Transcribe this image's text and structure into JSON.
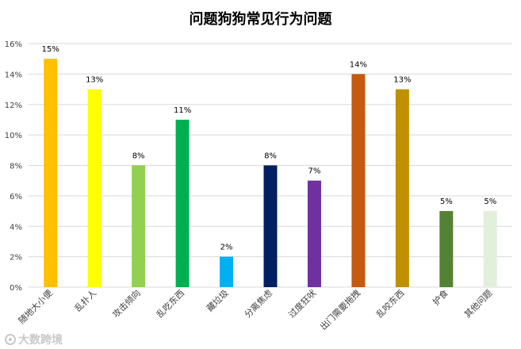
{
  "chart_data": {
    "type": "bar",
    "title": "问题狗狗常见行为问题",
    "categories": [
      "随地大小便",
      "乱扑人",
      "攻击倾向",
      "乱吃东西",
      "藏垃圾",
      "分离焦虑",
      "过度狂吠",
      "出门需要拖拽",
      "乱咬东西",
      "护食",
      "其他问题"
    ],
    "values": [
      15,
      13,
      8,
      11,
      2,
      8,
      7,
      14,
      13,
      5,
      5
    ],
    "data_labels": [
      "15%",
      "13%",
      "8%",
      "11%",
      "2%",
      "8%",
      "7%",
      "14%",
      "13%",
      "5%",
      "5%"
    ],
    "colors": [
      "#ffc000",
      "#ffff00",
      "#92d050",
      "#00b050",
      "#00b0f0",
      "#002060",
      "#7030a0",
      "#c55a11",
      "#bf9000",
      "#548235",
      "#e2efda"
    ],
    "ylim": [
      0,
      16
    ],
    "yticks": [
      "0%",
      "2%",
      "4%",
      "6%",
      "8%",
      "10%",
      "12%",
      "14%",
      "16%"
    ],
    "grid": true,
    "xlabel": "",
    "ylabel": ""
  },
  "watermark": {
    "text": "大数跨境"
  }
}
